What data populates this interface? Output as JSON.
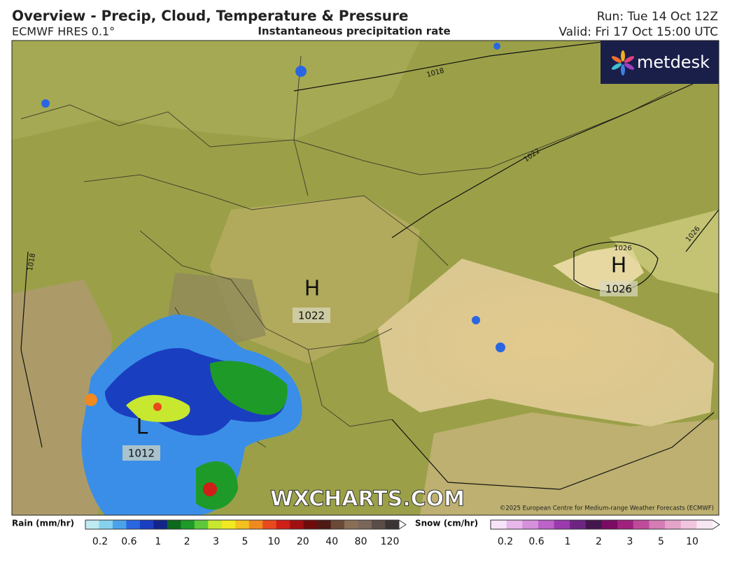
{
  "header": {
    "title": "Overview - Precip, Cloud, Temperature & Pressure",
    "model": "ECMWF HRES 0.1°",
    "subtitle": "Instantaneous precipitation rate",
    "run": "Run: Tue 14 Oct 12Z",
    "valid": "Valid: Fri 17 Oct 15:00 UTC"
  },
  "logo": "metdesk",
  "map": {
    "pressure_centers": [
      {
        "letter": "H",
        "value": 1022
      },
      {
        "letter": "H",
        "value": 1026
      },
      {
        "letter": "L",
        "value": 1012
      }
    ],
    "isobar_labels": [
      1018,
      1022,
      1026,
      1026,
      1018
    ],
    "watermark": "WXCHARTS.COM",
    "copyright": "©2025 European Centre for Medium-range Weather Forecasts (ECMWF)"
  },
  "legend": {
    "rain": {
      "label": "Rain (mm/hr)",
      "ticks": [
        0.2,
        0.6,
        1,
        2,
        3,
        5,
        10,
        20,
        40,
        80,
        120
      ],
      "colors": [
        "#bfeaf2",
        "#86d2ee",
        "#4aa2ea",
        "#2a66e2",
        "#1a3ec0",
        "#12248a",
        "#0c6a1c",
        "#1e9a28",
        "#5ec83a",
        "#c8e830",
        "#f2e820",
        "#f4c020",
        "#f08a20",
        "#e84a1e",
        "#d01e18",
        "#a01010",
        "#6e0c0c",
        "#4e1a14",
        "#6a4a36",
        "#8a6e56",
        "#7a665a",
        "#5a4c46",
        "#3a3434"
      ]
    },
    "snow": {
      "label": "Snow (cm/hr)",
      "ticks": [
        0.2,
        0.6,
        1,
        2,
        3,
        5,
        10
      ],
      "colors": [
        "#f8e4f8",
        "#e8b8ea",
        "#d690dc",
        "#bc62c8",
        "#9a3aae",
        "#6e2482",
        "#44164e",
        "#7a0a62",
        "#a0207e",
        "#c04a9a",
        "#d47cb4",
        "#e4a4ca",
        "#efc6de",
        "#f8e6f2"
      ]
    }
  }
}
